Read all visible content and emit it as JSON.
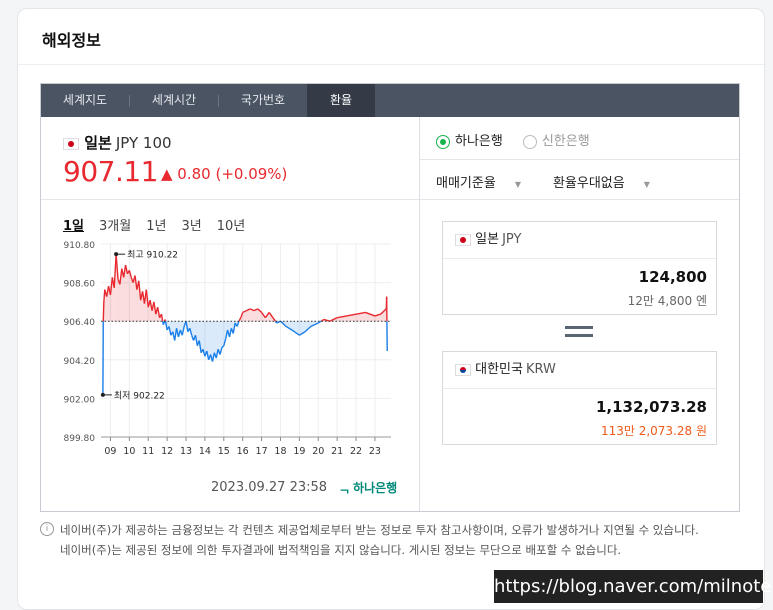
{
  "section_title": "해외정보",
  "tabs": [
    {
      "label": "세계지도",
      "active": false
    },
    {
      "label": "세계시간",
      "active": false
    },
    {
      "label": "국가번호",
      "active": false
    },
    {
      "label": "환율",
      "active": true
    }
  ],
  "currency": {
    "country": "일본",
    "code": "JPY 100",
    "price": "907.11",
    "change": "▲ 0.80 (+0.09%)",
    "color_up": "#e8292f"
  },
  "periods": [
    "1일",
    "3개월",
    "1년",
    "3년",
    "10년"
  ],
  "selected_period": "1일",
  "chart_data": {
    "type": "line",
    "y_ticks": [
      "910.80",
      "908.60",
      "906.40",
      "904.20",
      "902.00",
      "899.80"
    ],
    "x_ticks": [
      "09",
      "10",
      "11",
      "12",
      "13",
      "14",
      "15",
      "16",
      "17",
      "18",
      "19",
      "20",
      "21",
      "22",
      "23"
    ],
    "ylim": [
      899.8,
      910.8
    ],
    "baseline": 906.4,
    "annotations": {
      "high": "최고 910.22",
      "low": "최저 902.22"
    },
    "series": [
      {
        "x": [
          8.6,
          8.62,
          8.65,
          8.7,
          8.8,
          8.9,
          9.0,
          9.1,
          9.2,
          9.3,
          9.4,
          9.5,
          9.6,
          9.7,
          9.8,
          9.9,
          10.0,
          10.1,
          10.2,
          10.3,
          10.4,
          10.5,
          10.6,
          10.7,
          10.8,
          10.9,
          11.0,
          11.1,
          11.2,
          11.3,
          11.4,
          11.5,
          11.6,
          11.7,
          11.8,
          11.9,
          12.0,
          12.1,
          12.2,
          12.3,
          12.4,
          12.5,
          12.6,
          12.7,
          12.8,
          12.9,
          13.0,
          13.1,
          13.2,
          13.3,
          13.4,
          13.5,
          13.6,
          13.7,
          13.8,
          13.9,
          14.0,
          14.1,
          14.2,
          14.3,
          14.4,
          14.5,
          14.6,
          14.7,
          14.8,
          14.9,
          15.0,
          15.1,
          15.2,
          15.3,
          15.4,
          15.5,
          15.6,
          15.7,
          15.8,
          15.9,
          16.0,
          16.2,
          16.4,
          16.6,
          16.8,
          17.0,
          17.2,
          17.4,
          17.6,
          17.8,
          18.0,
          18.3,
          18.6,
          19.0,
          19.3,
          19.6,
          20.0,
          20.3,
          20.6,
          21.0,
          21.5,
          22.0,
          22.5,
          23.0,
          23.3,
          23.6,
          23.62,
          23.65
        ],
        "y": [
          902.2,
          906.4,
          907.5,
          908.2,
          907.8,
          908.4,
          907.9,
          908.9,
          908.3,
          910.22,
          908.8,
          908.5,
          909.4,
          908.9,
          909.6,
          909.1,
          909.3,
          908.9,
          908.6,
          909.0,
          908.2,
          908.7,
          907.6,
          908.1,
          907.4,
          908.2,
          907.2,
          907.6,
          907.0,
          907.5,
          906.8,
          907.2,
          906.6,
          906.8,
          906.2,
          906.5,
          905.9,
          906.1,
          905.6,
          905.8,
          905.3,
          906.0,
          905.5,
          905.9,
          905.6,
          906.1,
          906.4,
          905.8,
          906.0,
          905.6,
          905.3,
          905.6,
          905.0,
          905.3,
          904.6,
          904.8,
          904.4,
          904.7,
          904.2,
          904.5,
          904.1,
          904.6,
          904.3,
          904.8,
          904.5,
          904.9,
          905.0,
          905.4,
          905.9,
          905.5,
          906.0,
          905.7,
          906.3,
          906.1,
          906.4,
          906.6,
          906.9,
          907.0,
          907.1,
          907.0,
          907.1,
          906.9,
          906.6,
          906.9,
          906.6,
          906.3,
          906.4,
          906.1,
          905.9,
          905.6,
          905.8,
          906.1,
          906.3,
          906.5,
          906.4,
          906.6,
          906.7,
          906.8,
          906.9,
          906.7,
          906.8,
          907.1,
          907.8,
          904.7
        ]
      }
    ],
    "color_up": "#e8292f",
    "color_down": "#1a7fe8"
  },
  "timestamp": "2023.09.27 23:58",
  "bank_logo": "하나은행",
  "banks": [
    {
      "label": "하나은행",
      "selected": true
    },
    {
      "label": "신한은행",
      "selected": false
    }
  ],
  "options": [
    "매매기준율",
    "환율우대없음"
  ],
  "from": {
    "country": "일본",
    "code": "JPY",
    "amount": "124,800",
    "sub": "12만 4,800 엔"
  },
  "to": {
    "country": "대한민국",
    "code": "KRW",
    "amount": "1,132,073.28",
    "sub": "113만 2,073.28 원",
    "sub_color": "#f05a1a"
  },
  "notice": [
    "네이버(주)가 제공하는 금융정보는 각 컨텐츠 제공업체로부터 받는 정보로 투자 참고사항이며, 오류가 발생하거나 지연될 수 있습니다.",
    "네이버(주)는 제공된 정보에 의한 투자결과에 법적책임을 지지 않습니다. 게시된 정보는 무단으로 배포할 수 없습니다."
  ],
  "watermark": "https://blog.naver.com/milnote"
}
